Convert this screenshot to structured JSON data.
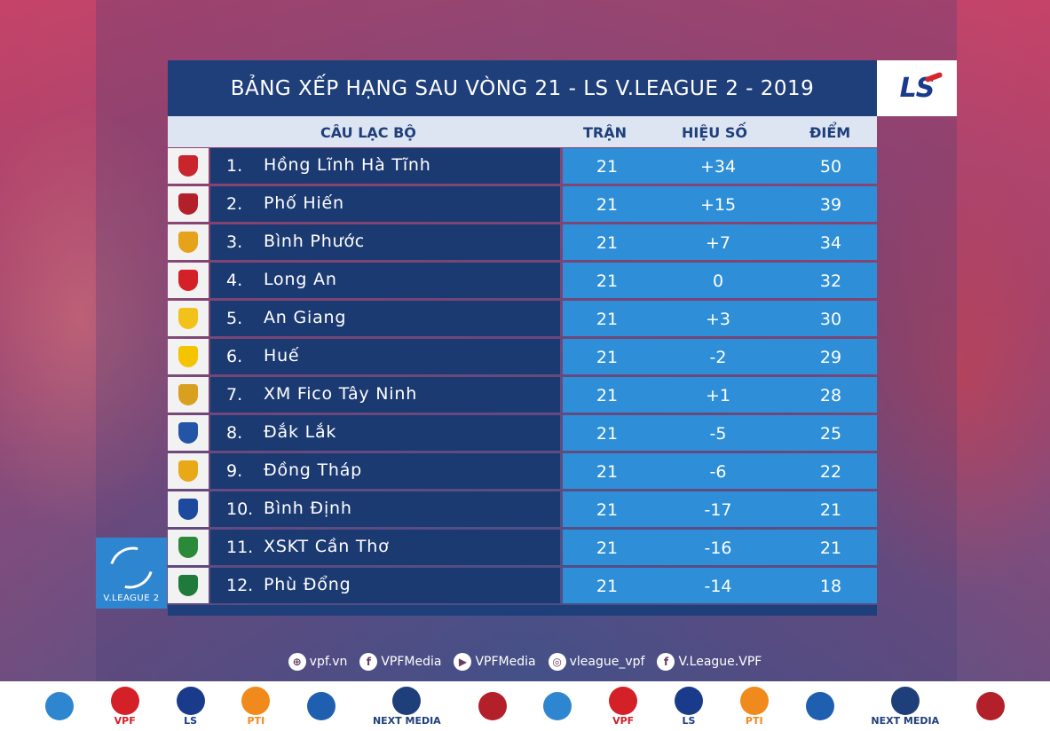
{
  "title": "BẢNG XẾP HẠNG SAU VÒNG 21 - LS V.LEAGUE 2 - 2019",
  "header": {
    "club": "CÂU LẠC BỘ",
    "played": "TRẬN",
    "diff": "HIỆU SỐ",
    "points": "ĐIỂM"
  },
  "sponsor_logo": "LS",
  "rows": [
    {
      "rank": "1.",
      "name": "Hồng Lĩnh Hà Tĩnh",
      "played": "21",
      "diff": "+34",
      "points": "50",
      "crest_color": "#c9252c"
    },
    {
      "rank": "2.",
      "name": "Phố Hiến",
      "played": "21",
      "diff": "+15",
      "points": "39",
      "crest_color": "#b3202a"
    },
    {
      "rank": "3.",
      "name": "Bình Phước",
      "played": "21",
      "diff": "+7",
      "points": "34",
      "crest_color": "#e6a21a"
    },
    {
      "rank": "4.",
      "name": "Long An",
      "played": "21",
      "diff": "0",
      "points": "32",
      "crest_color": "#d42027"
    },
    {
      "rank": "5.",
      "name": "An Giang",
      "played": "21",
      "diff": "+3",
      "points": "30",
      "crest_color": "#f2c21b"
    },
    {
      "rank": "6.",
      "name": "Huế",
      "played": "21",
      "diff": "-2",
      "points": "29",
      "crest_color": "#f5c400"
    },
    {
      "rank": "7.",
      "name": "XM Fico Tây Ninh",
      "played": "21",
      "diff": "+1",
      "points": "28",
      "crest_color": "#d9a020"
    },
    {
      "rank": "8.",
      "name": "Đắk Lắk",
      "played": "21",
      "diff": "-5",
      "points": "25",
      "crest_color": "#2454a6"
    },
    {
      "rank": "9.",
      "name": "Đồng Tháp",
      "played": "21",
      "diff": "-6",
      "points": "22",
      "crest_color": "#e8a818"
    },
    {
      "rank": "10.",
      "name": "Bình Định",
      "played": "21",
      "diff": "-17",
      "points": "21",
      "crest_color": "#1d4a9c"
    },
    {
      "rank": "11.",
      "name": "XSKT Cần Thơ",
      "played": "21",
      "diff": "-16",
      "points": "21",
      "crest_color": "#2a8a3a"
    },
    {
      "rank": "12.",
      "name": "Phù Đổng",
      "played": "21",
      "diff": "-14",
      "points": "18",
      "crest_color": "#1f7a3b"
    }
  ],
  "vleague_badge": "V.LEAGUE 2",
  "social": [
    {
      "icon": "globe-icon",
      "glyph": "⊕",
      "label": "vpf.vn"
    },
    {
      "icon": "facebook-icon",
      "glyph": "f",
      "label": "VPFMedia"
    },
    {
      "icon": "youtube-icon",
      "glyph": "▶",
      "label": "VPFMedia"
    },
    {
      "icon": "instagram-icon",
      "glyph": "◎",
      "label": "vleague_vpf"
    },
    {
      "icon": "facebook-icon",
      "glyph": "f",
      "label": "V.League.VPF"
    }
  ],
  "sponsors": [
    {
      "label": "",
      "color": "#2f86d0"
    },
    {
      "label": "VPF",
      "color": "#d42027"
    },
    {
      "label": "LS",
      "color": "#1a3b8b"
    },
    {
      "label": "PTI",
      "color": "#f08a1c"
    },
    {
      "label": "",
      "color": "#1e5fb0"
    },
    {
      "label": "NEXT MEDIA",
      "color": "#1f3f7a"
    },
    {
      "label": "",
      "color": "#b3202a"
    },
    {
      "label": "",
      "color": "#2f86d0"
    },
    {
      "label": "VPF",
      "color": "#d42027"
    },
    {
      "label": "LS",
      "color": "#1a3b8b"
    },
    {
      "label": "PTI",
      "color": "#f08a1c"
    },
    {
      "label": "",
      "color": "#1e5fb0"
    },
    {
      "label": "NEXT MEDIA",
      "color": "#1f3f7a"
    },
    {
      "label": "",
      "color": "#b3202a"
    }
  ]
}
